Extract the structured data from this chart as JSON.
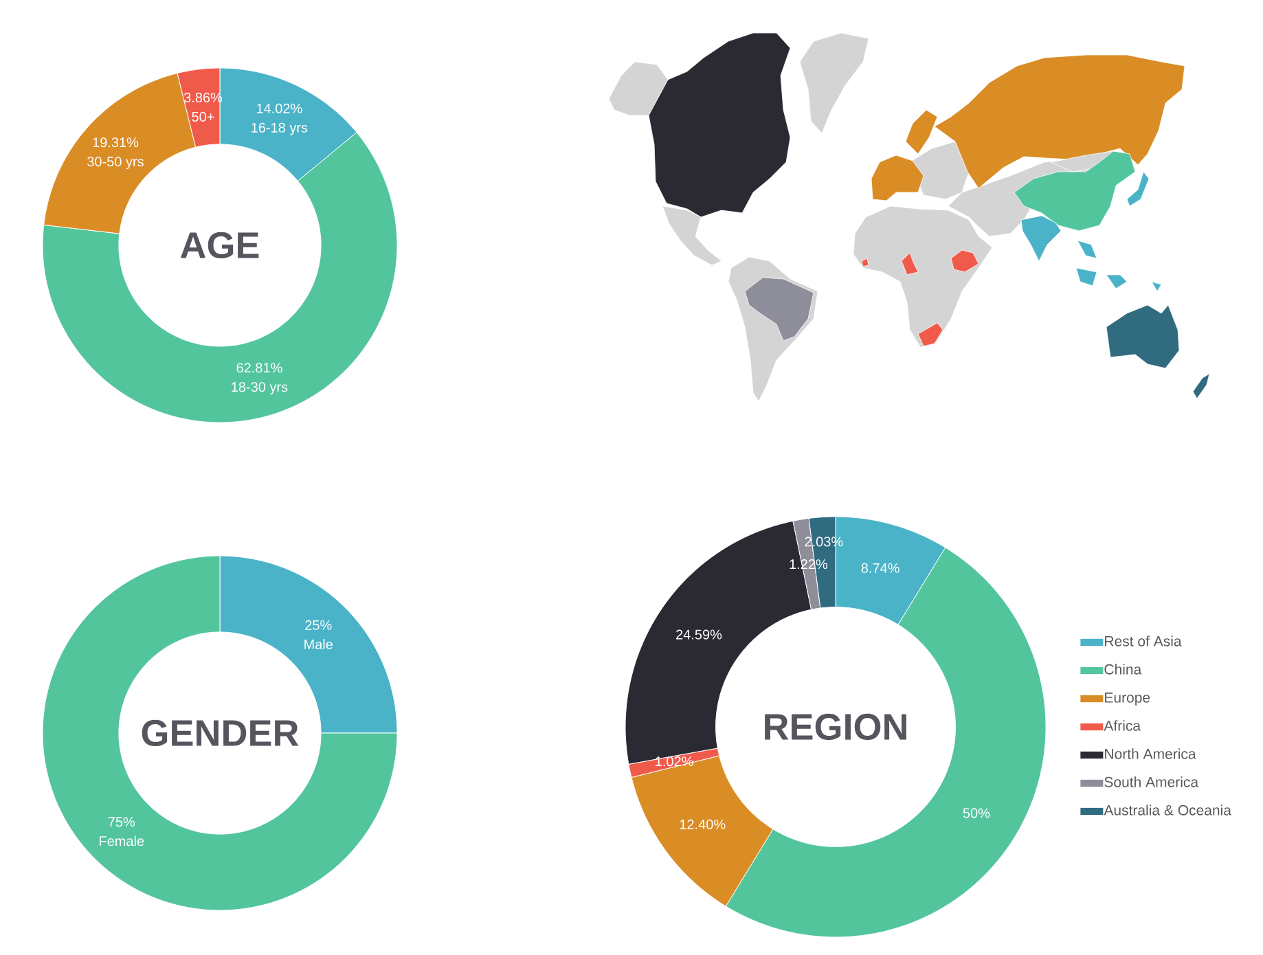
{
  "chart_data": [
    {
      "type": "donut",
      "title": "AGE",
      "categories": [
        "16-18 yrs",
        "18-30 yrs",
        "30-50 yrs",
        "50+"
      ],
      "values": [
        14.02,
        62.81,
        19.31,
        3.86
      ],
      "colors": [
        "#4ab3c8",
        "#53c59c",
        "#da8c25",
        "#f05a4a"
      ],
      "value_labels": [
        "14.02%",
        "62.81%",
        "19.31%",
        "3.86%"
      ]
    },
    {
      "type": "donut",
      "title": "GENDER",
      "categories": [
        "Male",
        "Female"
      ],
      "values": [
        25,
        75
      ],
      "colors": [
        "#4ab3c8",
        "#53c59c"
      ],
      "value_labels": [
        "25%",
        "75%"
      ]
    },
    {
      "type": "donut",
      "title": "REGION",
      "categories": [
        "Rest of Asia",
        "China",
        "Europe",
        "Africa",
        "North America",
        "South America",
        "Australia & Oceania"
      ],
      "values": [
        8.74,
        50,
        12.4,
        1.02,
        24.59,
        1.22,
        2.03
      ],
      "colors": [
        "#4ab3c8",
        "#53c59c",
        "#da8c25",
        "#f05a4a",
        "#2b2a33",
        "#8e8e9a",
        "#306b80"
      ],
      "value_labels": [
        "8.74%",
        "50%",
        "12.40%",
        "1.02%",
        "24.59%",
        "1.22%",
        "2.03%"
      ],
      "legend": "right"
    }
  ]
}
